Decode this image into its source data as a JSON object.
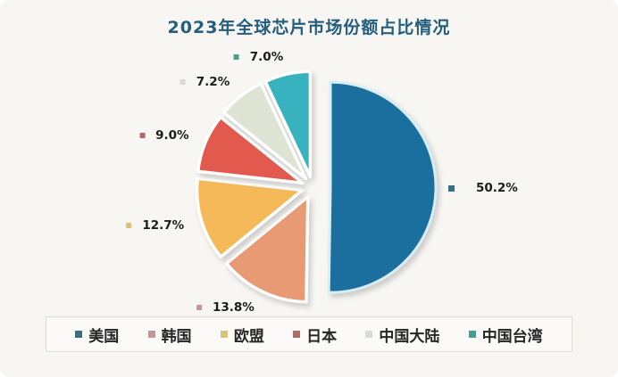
{
  "chart_data": {
    "type": "pie",
    "title": "2023年全球芯片市场份额占比情况",
    "exploded": true,
    "direction": "clockwise",
    "start_angle_deg": 0,
    "legend_position": "bottom",
    "series": [
      {
        "name": "美国",
        "value": 50.2,
        "label": "50.2%",
        "color": "#1b6f9e",
        "legend_color": "#3c6e80"
      },
      {
        "name": "韩国",
        "value": 13.8,
        "label": "13.8%",
        "color": "#e89a74",
        "legend_color": "#c4959a"
      },
      {
        "name": "欧盟",
        "value": 12.7,
        "label": "12.7%",
        "color": "#f5b95a",
        "legend_color": "#d9c27a"
      },
      {
        "name": "日本",
        "value": 9.0,
        "label": "9.0%",
        "color": "#e25a4d",
        "legend_color": "#b26a62"
      },
      {
        "name": "中国大陆",
        "value": 7.2,
        "label": "7.2%",
        "color": "#dde4d3",
        "legend_color": "#d8dbd5"
      },
      {
        "name": "中国台湾",
        "value": 7.0,
        "label": "7.0%",
        "color": "#38b2be",
        "legend_color": "#45a08b"
      }
    ]
  }
}
